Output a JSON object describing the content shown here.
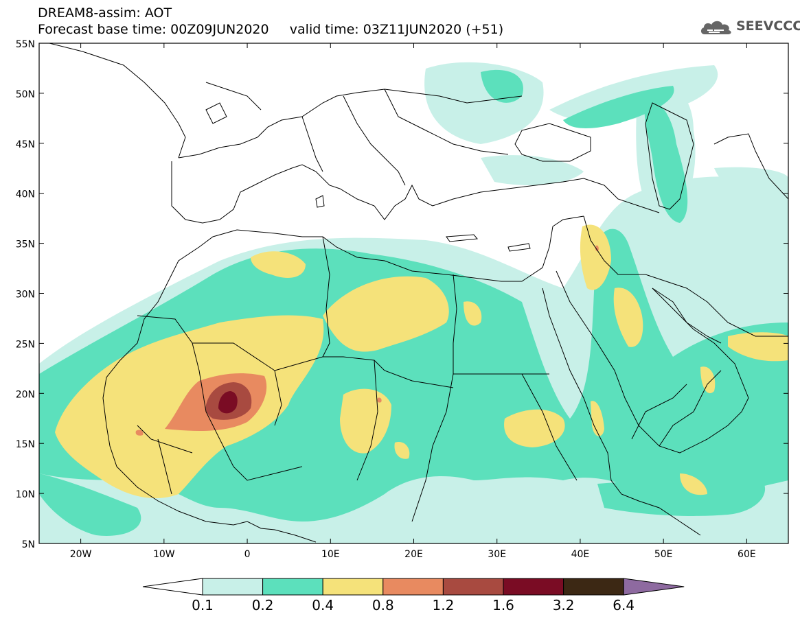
{
  "header": {
    "title": "DREAM8-assim: AOT",
    "base_time_label": "Forecast base time: 00Z09JUN2020",
    "valid_time_label": "valid time: 03Z11JUN2020 (+51)"
  },
  "logo": {
    "text": "SEEVCCC",
    "icon": "cloud-icon"
  },
  "map": {
    "lon_range": [
      -25,
      65
    ],
    "lat_range": [
      5,
      55
    ],
    "lat_ticks": [
      "55N",
      "50N",
      "45N",
      "40N",
      "35N",
      "30N",
      "25N",
      "20N",
      "15N",
      "10N",
      "5N"
    ],
    "lon_ticks": [
      "20W",
      "10W",
      "0",
      "10E",
      "20E",
      "30E",
      "40E",
      "50E",
      "60E"
    ]
  },
  "colorbar": {
    "labels": [
      "0.1",
      "0.2",
      "0.4",
      "0.8",
      "1.2",
      "1.6",
      "3.2",
      "6.4"
    ],
    "colors": [
      "#c8f0e8",
      "#5ce0bc",
      "#f5e27a",
      "#e88a60",
      "#a84a40",
      "#7a0c24",
      "#3c2814",
      "#8e6aa0"
    ]
  }
}
